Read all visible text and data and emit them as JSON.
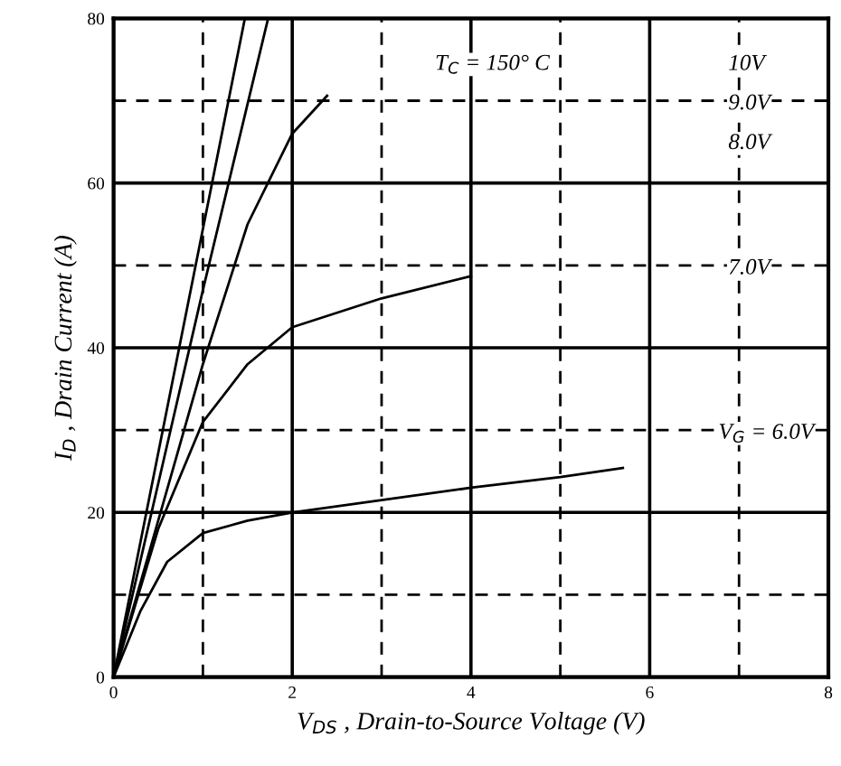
{
  "chart_data": {
    "type": "line",
    "xlabel": "V$_{DS}$ , Drain-to-Source Voltage (V)",
    "ylabel": "I$_{D}$ , Drain Current (A)",
    "xlim": [
      0,
      8
    ],
    "xticks": [
      0,
      2,
      4,
      6,
      8
    ],
    "ylim": [
      0,
      80
    ],
    "yticks": [
      0,
      20,
      40,
      60,
      80
    ],
    "grid": true,
    "annotations": [
      "T$_{C}$ = 150° C",
      "10V",
      "9.0V",
      "8.0V",
      "7.0V",
      "V$_{G}$ = 6.0V"
    ],
    "series": [
      {
        "color": "#000000",
        "x": [
          0,
          1.47
        ],
        "values": [
          0,
          80
        ]
      },
      {
        "color": "#000000",
        "x": [
          0,
          1.0,
          1.73
        ],
        "values": [
          0,
          47,
          80
        ]
      },
      {
        "color": "#000000",
        "x": [
          0,
          0.5,
          1.0,
          1.5,
          2.0,
          2.39
        ],
        "values": [
          0,
          19,
          38,
          55,
          66,
          70.6
        ]
      },
      {
        "color": "#000000",
        "x": [
          0,
          0.5,
          1.0,
          1.5,
          2.0,
          3.0,
          4.0
        ],
        "values": [
          0,
          18,
          31,
          38,
          42.5,
          46,
          48.7
        ]
      },
      {
        "color": "#000000",
        "x": [
          0,
          0.3,
          0.6,
          1.0,
          1.5,
          2.0,
          3.0,
          4.0,
          5.0,
          5.7
        ],
        "values": [
          0,
          8,
          14,
          17.5,
          19,
          20,
          21.5,
          23,
          24.3,
          25.4
        ]
      }
    ]
  }
}
